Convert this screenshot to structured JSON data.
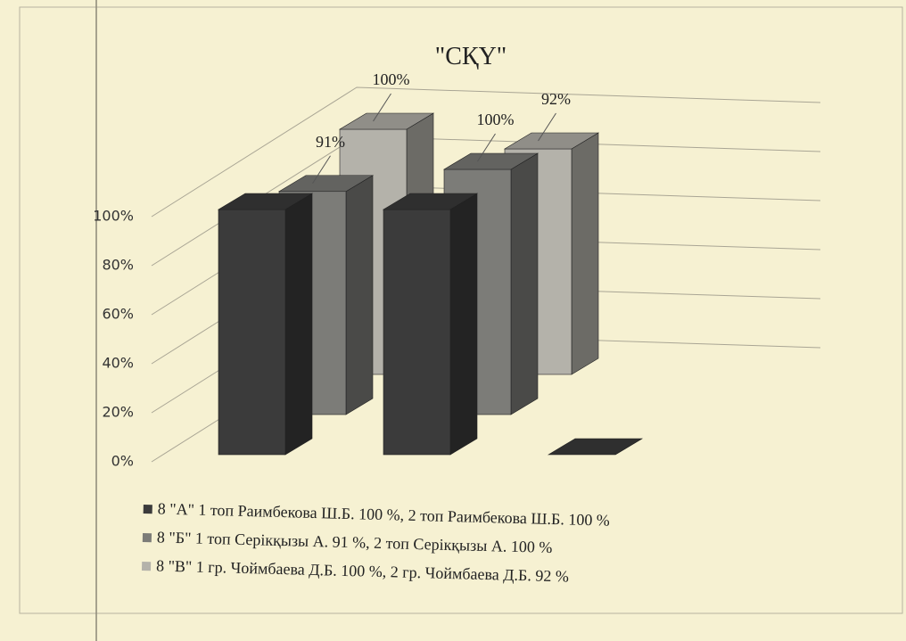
{
  "chart_data": {
    "type": "bar3d",
    "title": "\"СҚҮ\"",
    "categories": [
      null,
      null,
      null
    ],
    "series": [
      {
        "name": "8 \"А\" 1 топ Раимбекова Ш.Б. 100 %, 2 топ Раимбекова Ш.Б. 100 %",
        "color": "#3b3b3b",
        "values": [
          100,
          100,
          0
        ]
      },
      {
        "name": "8 \"Б\" 1 топ Серікқызы А. 91 %, 2 топ Серікқызы А. 100 %",
        "color": "#7c7c78",
        "values": [
          91,
          100,
          null
        ],
        "value_labels": [
          "91%",
          "100%",
          null
        ]
      },
      {
        "name": "8 \"В\" 1 гр.  Чоймбаева Д.Б. 100 %, 2 гр. Чоймбаева Д.Б. 92 %",
        "color": "#b4b2aa",
        "values": [
          100,
          92,
          null
        ],
        "value_labels": [
          "100%",
          "92%",
          null
        ]
      }
    ],
    "ylim": [
      0,
      100
    ],
    "yticks": [
      {
        "value": 0,
        "label": "0%"
      },
      {
        "value": 20,
        "label": "20%"
      },
      {
        "value": 40,
        "label": "40%"
      },
      {
        "value": 60,
        "label": "60%"
      },
      {
        "value": 80,
        "label": "80%"
      },
      {
        "value": 100,
        "label": "100%"
      }
    ],
    "grid": true
  }
}
